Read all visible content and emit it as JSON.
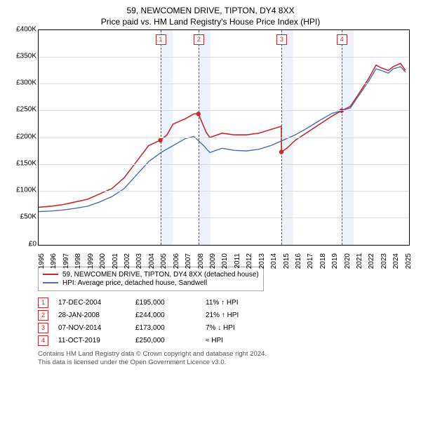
{
  "title_line1": "59, NEWCOMEN DRIVE, TIPTON, DY4 8XX",
  "title_line2": "Price paid vs. HM Land Registry's House Price Index (HPI)",
  "chart": {
    "type": "line",
    "x_years": [
      1995,
      1996,
      1997,
      1998,
      1999,
      2000,
      2001,
      2002,
      2003,
      2004,
      2005,
      2006,
      2007,
      2008,
      2009,
      2010,
      2011,
      2012,
      2013,
      2014,
      2015,
      2016,
      2017,
      2018,
      2019,
      2020,
      2021,
      2022,
      2023,
      2024,
      2025
    ],
    "xlim": [
      1995,
      2025.3
    ],
    "ylim": [
      0,
      400000
    ],
    "ytick_step": 50000,
    "ytick_labels": [
      "£0",
      "£50K",
      "£100K",
      "£150K",
      "£200K",
      "£250K",
      "£300K",
      "£350K",
      "£400K"
    ],
    "grid_color": "#dddddd",
    "background_color": "#ffffff",
    "band_color": "#eef3fb",
    "vline_color": "#c62a2e",
    "series": [
      {
        "name": "59, NEWCOMEN DRIVE, TIPTON, DY4 8XX (detached house)",
        "color": "#c62a2e",
        "width": 1.6,
        "points": [
          [
            1995,
            70000
          ],
          [
            1996,
            72000
          ],
          [
            1997,
            75000
          ],
          [
            1998,
            80000
          ],
          [
            1999,
            85000
          ],
          [
            2000,
            95000
          ],
          [
            2001,
            105000
          ],
          [
            2002,
            125000
          ],
          [
            2003,
            155000
          ],
          [
            2004,
            185000
          ],
          [
            2004.96,
            195000
          ],
          [
            2005.5,
            205000
          ],
          [
            2006,
            225000
          ],
          [
            2007,
            235000
          ],
          [
            2007.7,
            244000
          ],
          [
            2008.07,
            244000
          ],
          [
            2008.7,
            210000
          ],
          [
            2009,
            200000
          ],
          [
            2010,
            208000
          ],
          [
            2011,
            205000
          ],
          [
            2012,
            205000
          ],
          [
            2013,
            208000
          ],
          [
            2014,
            215000
          ],
          [
            2014.85,
            221000
          ],
          [
            2014.86,
            173000
          ],
          [
            2015.3,
            180000
          ],
          [
            2016,
            195000
          ],
          [
            2017,
            210000
          ],
          [
            2018,
            225000
          ],
          [
            2019,
            240000
          ],
          [
            2019.78,
            250000
          ],
          [
            2020.5,
            258000
          ],
          [
            2021,
            275000
          ],
          [
            2022,
            310000
          ],
          [
            2022.6,
            335000
          ],
          [
            2023,
            330000
          ],
          [
            2023.6,
            325000
          ],
          [
            2024,
            332000
          ],
          [
            2024.6,
            338000
          ],
          [
            2025,
            325000
          ]
        ]
      },
      {
        "name": "HPI: Average price, detached house, Sandwell",
        "color": "#4a6fb3",
        "width": 1.4,
        "points": [
          [
            1995,
            62000
          ],
          [
            1996,
            63000
          ],
          [
            1997,
            65000
          ],
          [
            1998,
            68000
          ],
          [
            1999,
            72000
          ],
          [
            2000,
            80000
          ],
          [
            2001,
            90000
          ],
          [
            2002,
            105000
          ],
          [
            2003,
            130000
          ],
          [
            2004,
            155000
          ],
          [
            2005,
            172000
          ],
          [
            2006,
            185000
          ],
          [
            2007,
            198000
          ],
          [
            2007.7,
            202000
          ],
          [
            2008.5,
            185000
          ],
          [
            2009,
            172000
          ],
          [
            2010,
            180000
          ],
          [
            2011,
            176000
          ],
          [
            2012,
            175000
          ],
          [
            2013,
            178000
          ],
          [
            2014,
            185000
          ],
          [
            2015,
            195000
          ],
          [
            2016,
            205000
          ],
          [
            2017,
            218000
          ],
          [
            2018,
            232000
          ],
          [
            2019,
            245000
          ],
          [
            2019.78,
            250000
          ],
          [
            2020.5,
            255000
          ],
          [
            2021,
            272000
          ],
          [
            2022,
            305000
          ],
          [
            2022.6,
            328000
          ],
          [
            2023,
            325000
          ],
          [
            2023.6,
            320000
          ],
          [
            2024,
            328000
          ],
          [
            2024.6,
            332000
          ],
          [
            2025,
            322000
          ]
        ]
      }
    ],
    "sale_markers": [
      {
        "n": "1",
        "year": 2004.96,
        "value": 195000
      },
      {
        "n": "2",
        "year": 2008.07,
        "value": 244000
      },
      {
        "n": "3",
        "year": 2014.86,
        "value": 173000
      },
      {
        "n": "4",
        "year": 2019.78,
        "value": 250000
      }
    ],
    "band_years": [
      [
        2004.96,
        2005.96
      ],
      [
        2008.07,
        2009.07
      ],
      [
        2014.86,
        2015.86
      ],
      [
        2019.78,
        2020.78
      ]
    ],
    "label_fontsize": 10,
    "title_fontsize": 12
  },
  "legend": {
    "items": [
      {
        "color": "#c62a2e",
        "text": "59, NEWCOMEN DRIVE, TIPTON, DY4 8XX (detached house)"
      },
      {
        "color": "#4a6fb3",
        "text": "HPI: Average price, detached house, Sandwell"
      }
    ]
  },
  "rows": [
    {
      "n": "1",
      "date": "17-DEC-2004",
      "price": "£195,000",
      "cmp": "11% ↑ HPI"
    },
    {
      "n": "2",
      "date": "28-JAN-2008",
      "price": "£244,000",
      "cmp": "21% ↑ HPI"
    },
    {
      "n": "3",
      "date": "07-NOV-2014",
      "price": "£173,000",
      "cmp": "7% ↓ HPI"
    },
    {
      "n": "4",
      "date": "11-OCT-2019",
      "price": "£250,000",
      "cmp": "≈ HPI"
    }
  ],
  "footer_line1": "Contains HM Land Registry data © Crown copyright and database right 2024.",
  "footer_line2": "This data is licensed under the Open Government Licence v3.0."
}
